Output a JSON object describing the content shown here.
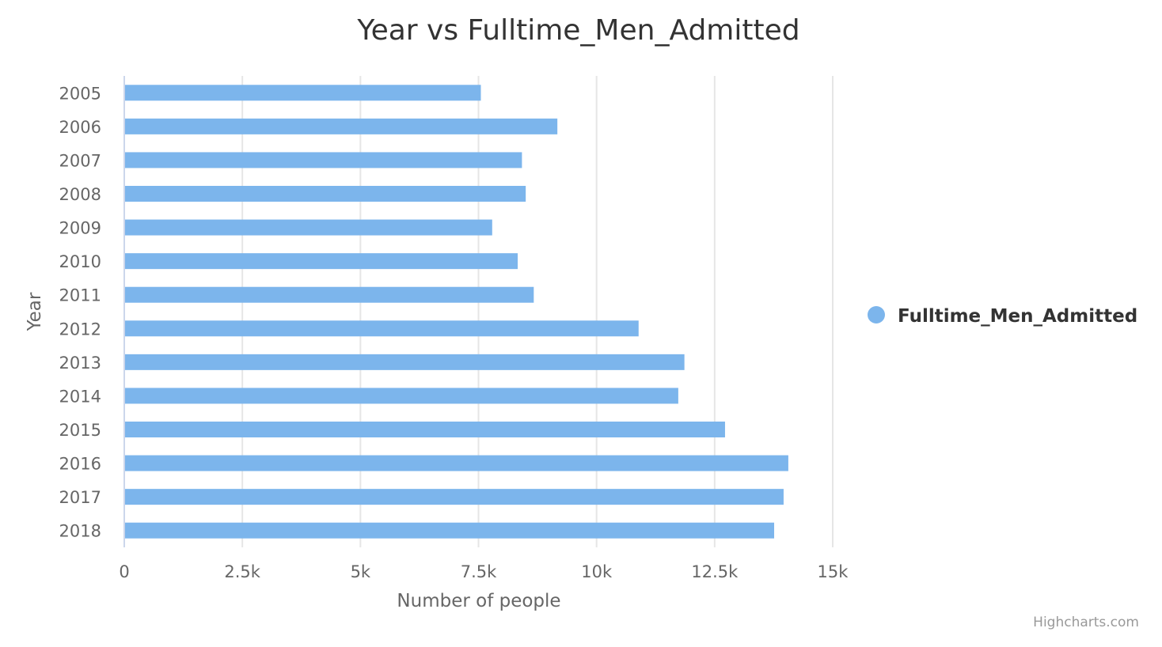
{
  "chart_data": {
    "type": "bar",
    "orientation": "horizontal",
    "title": "Year vs Fulltime_Men_Admitted",
    "xlabel": "Year",
    "ylabel": "Number of people",
    "categories": [
      "2005",
      "2006",
      "2007",
      "2008",
      "2009",
      "2010",
      "2011",
      "2012",
      "2013",
      "2014",
      "2015",
      "2016",
      "2017",
      "2018"
    ],
    "series": [
      {
        "name": "Fulltime_Men_Admitted",
        "color": "#7cb5ec",
        "values": [
          7550,
          9170,
          8420,
          8500,
          7790,
          8330,
          8670,
          10890,
          11860,
          11730,
          12720,
          14060,
          13960,
          13760
        ]
      }
    ],
    "value_axis": {
      "range": [
        0,
        15000
      ],
      "ticks": [
        0,
        2500,
        5000,
        7500,
        10000,
        12500,
        15000
      ],
      "tick_labels": [
        "0",
        "2.5k",
        "5k",
        "7.5k",
        "10k",
        "12.5k",
        "15k"
      ]
    },
    "grid": true,
    "legend": {
      "position": "right",
      "entries": [
        "Fulltime_Men_Admitted"
      ]
    },
    "credit": "Highcharts.com"
  }
}
